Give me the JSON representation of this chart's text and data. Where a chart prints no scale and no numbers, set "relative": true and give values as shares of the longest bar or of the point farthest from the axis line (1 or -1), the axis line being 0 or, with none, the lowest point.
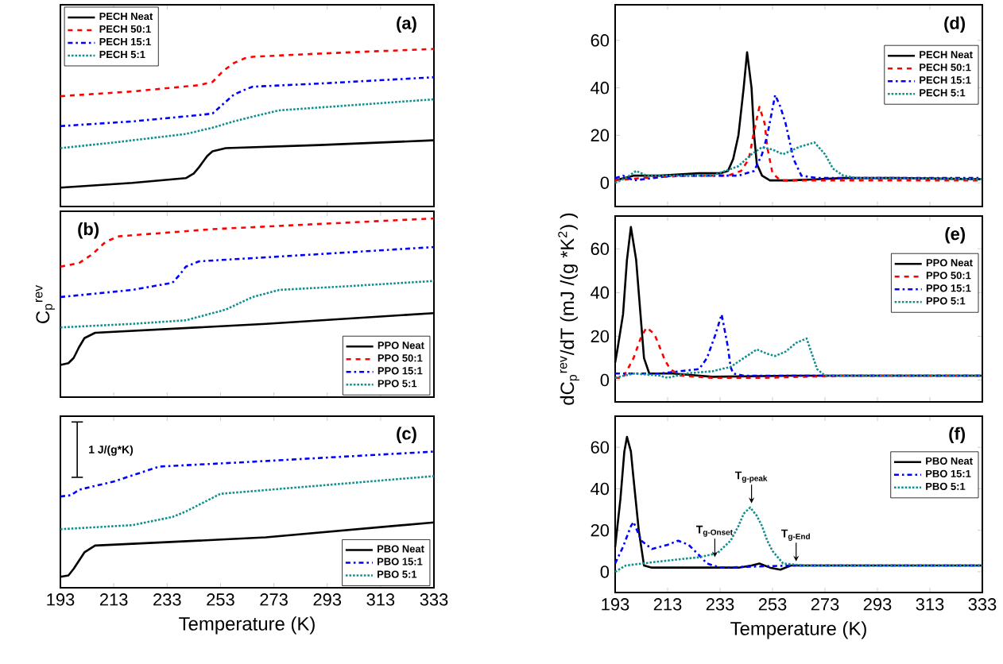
{
  "chart_data": [
    {
      "type": "line",
      "title": "(a)",
      "relative": true,
      "xlim": [
        193,
        333
      ],
      "xticks": [
        193,
        213,
        233,
        253,
        273,
        293,
        313,
        333
      ],
      "tick_labels": false,
      "legend": "top left",
      "series": [
        {
          "name": "PECH Neat",
          "color": "#000000",
          "line_style": "solid",
          "x": [
            193,
            220,
            240,
            243,
            245,
            248,
            250,
            255,
            290,
            333
          ],
          "values": [
            0.12,
            0.15,
            0.18,
            0.21,
            0.25,
            0.32,
            0.35,
            0.37,
            0.39,
            0.42
          ]
        },
        {
          "name": "PECH 50:1",
          "color": "#ff0000",
          "line_style": "dashed",
          "x": [
            193,
            220,
            245,
            250,
            254,
            258,
            262,
            265,
            290,
            333
          ],
          "values": [
            0.7,
            0.73,
            0.77,
            0.79,
            0.86,
            0.91,
            0.94,
            0.95,
            0.97,
            1.0
          ]
        },
        {
          "name": "PECH 15:1",
          "color": "#0000ff",
          "line_style": "dashdot",
          "x": [
            193,
            220,
            245,
            250,
            254,
            258,
            262,
            265,
            290,
            333
          ],
          "values": [
            0.51,
            0.54,
            0.58,
            0.59,
            0.65,
            0.71,
            0.74,
            0.76,
            0.78,
            0.82
          ]
        },
        {
          "name": "PECH 5:1",
          "color": "#108f8f",
          "line_style": "dotted",
          "x": [
            193,
            215,
            240,
            250,
            258,
            265,
            275,
            300,
            333
          ],
          "values": [
            0.37,
            0.41,
            0.46,
            0.5,
            0.54,
            0.57,
            0.61,
            0.64,
            0.68
          ]
        }
      ]
    },
    {
      "type": "line",
      "title": "(b)",
      "ylabel": "C$_{p}$$^{rev}$",
      "relative": true,
      "xlim": [
        193,
        333
      ],
      "xticks": [
        193,
        213,
        233,
        253,
        273,
        293,
        313,
        333
      ],
      "tick_labels": false,
      "legend": "bottom right",
      "series": [
        {
          "name": "PPO Neat",
          "color": "#000000",
          "line_style": "solid",
          "x": [
            193,
            196,
            198,
            200,
            202,
            206,
            270,
            333
          ],
          "values": [
            0.18,
            0.19,
            0.22,
            0.28,
            0.33,
            0.36,
            0.41,
            0.47
          ]
        },
        {
          "name": "PPO 50:1",
          "color": "#ff0000",
          "line_style": "dashed",
          "x": [
            193,
            200,
            205,
            210,
            215,
            250,
            333
          ],
          "values": [
            0.73,
            0.75,
            0.8,
            0.87,
            0.9,
            0.94,
            1.0
          ]
        },
        {
          "name": "PPO 15:1",
          "color": "#0000ff",
          "line_style": "dashdot",
          "x": [
            193,
            220,
            235,
            238,
            240,
            245,
            290,
            333
          ],
          "values": [
            0.56,
            0.6,
            0.64,
            0.69,
            0.73,
            0.76,
            0.8,
            0.84
          ]
        },
        {
          "name": "PPO 5:1",
          "color": "#108f8f",
          "line_style": "dotted",
          "x": [
            193,
            220,
            240,
            255,
            265,
            275,
            300,
            333
          ],
          "values": [
            0.39,
            0.41,
            0.43,
            0.49,
            0.56,
            0.6,
            0.62,
            0.65
          ]
        }
      ]
    },
    {
      "type": "line",
      "title": "(c)",
      "xlabel": "Temperature (K)",
      "relative": true,
      "xlim": [
        193,
        333
      ],
      "xticks": [
        193,
        213,
        233,
        253,
        273,
        293,
        313,
        333
      ],
      "tick_labels": "x",
      "legend": "bottom right",
      "annotations": [
        "1 J/(g*K)"
      ],
      "series": [
        {
          "name": "PBO Neat",
          "color": "#000000",
          "line_style": "solid",
          "x": [
            193,
            196,
            198,
            200,
            202,
            206,
            270,
            333
          ],
          "values": [
            0.08,
            0.09,
            0.14,
            0.2,
            0.26,
            0.31,
            0.37,
            0.48
          ]
        },
        {
          "name": "PBO 15:1",
          "color": "#0000ff",
          "line_style": "dashdot",
          "x": [
            193,
            197,
            200,
            213,
            230,
            260,
            333
          ],
          "values": [
            0.67,
            0.68,
            0.72,
            0.78,
            0.89,
            0.92,
            1.0
          ]
        },
        {
          "name": "PBO 5:1",
          "color": "#108f8f",
          "line_style": "dotted",
          "x": [
            193,
            220,
            235,
            240,
            245,
            250,
            253,
            290,
            333
          ],
          "values": [
            0.43,
            0.46,
            0.52,
            0.56,
            0.61,
            0.66,
            0.69,
            0.75,
            0.82
          ]
        }
      ]
    },
    {
      "type": "line",
      "title": "(d)",
      "xlim": [
        193,
        333
      ],
      "xticks": [
        193,
        213,
        233,
        253,
        273,
        293,
        313,
        333
      ],
      "ylim": [
        -10,
        75
      ],
      "yticks": [
        0,
        20,
        40,
        60
      ],
      "tick_labels": "y",
      "legend": "top right",
      "series": [
        {
          "name": "PECH Neat",
          "color": "#000000",
          "line_style": "solid",
          "x": [
            193,
            200,
            210,
            225,
            233,
            236,
            238,
            240,
            242,
            243.3,
            245,
            246,
            247,
            249,
            252,
            260,
            280,
            300,
            333
          ],
          "values": [
            1,
            3,
            3,
            4,
            4,
            5,
            10,
            20,
            40,
            55,
            40,
            20,
            8,
            3,
            1,
            1,
            2,
            2,
            1.5
          ]
        },
        {
          "name": "PECH 50:1",
          "color": "#ff0000",
          "line_style": "dashed",
          "x": [
            193,
            203,
            220,
            236,
            241,
            244,
            246,
            248,
            250,
            251,
            253,
            256,
            270,
            333
          ],
          "values": [
            1,
            2,
            3,
            3,
            5,
            10,
            22,
            32,
            25,
            15,
            4,
            1,
            1,
            1
          ]
        },
        {
          "name": "PECH 15:1",
          "color": "#0000ff",
          "line_style": "dashdot",
          "x": [
            193,
            196,
            200,
            215,
            230,
            240,
            246,
            249,
            251,
            254,
            256,
            258,
            261,
            264,
            270,
            333
          ],
          "values": [
            2,
            3,
            1,
            3,
            3,
            3,
            5,
            12,
            20,
            37,
            32,
            25,
            10,
            3,
            2,
            2
          ]
        },
        {
          "name": "PECH 5:1",
          "color": "#108f8f",
          "line_style": "dotted",
          "x": [
            193,
            197,
            201,
            205,
            215,
            230,
            240,
            245,
            249,
            253,
            257,
            263,
            269,
            273,
            276,
            280,
            285,
            333
          ],
          "values": [
            0,
            2,
            5,
            3,
            3,
            3,
            7,
            12,
            15,
            14,
            12,
            15,
            17,
            12,
            6,
            3,
            2,
            1.5
          ]
        }
      ]
    },
    {
      "type": "line",
      "title": "(e)",
      "ylabel": "dC$_{p}$$^{rev}$/dT (mJ /(g *K$^{2}$) )",
      "xlim": [
        193,
        333
      ],
      "xticks": [
        193,
        213,
        233,
        253,
        273,
        293,
        313,
        333
      ],
      "ylim": [
        -10,
        75
      ],
      "yticks": [
        0,
        20,
        40,
        60
      ],
      "tick_labels": "y",
      "legend": "top right",
      "series": [
        {
          "name": "PPO Neat",
          "color": "#000000",
          "line_style": "solid",
          "x": [
            193,
            194,
            196,
            197.5,
            199,
            201,
            203,
            204,
            206,
            215,
            230,
            260,
            290,
            333
          ],
          "values": [
            8,
            15,
            30,
            55,
            70,
            55,
            25,
            10,
            3,
            3,
            1.5,
            2,
            2,
            2
          ]
        },
        {
          "name": "PPO 50:1",
          "color": "#ff0000",
          "line_style": "dashed",
          "x": [
            193,
            196,
            200,
            203,
            205,
            208,
            210,
            212,
            214,
            218,
            230,
            250,
            280,
            333
          ],
          "values": [
            1,
            1,
            10,
            20,
            24,
            21,
            15,
            9,
            5,
            2,
            1,
            1,
            2,
            2
          ]
        },
        {
          "name": "PPO 15:1",
          "color": "#0000ff",
          "line_style": "dashdot",
          "x": [
            193,
            210,
            225,
            228,
            231,
            233.6,
            236,
            237,
            238,
            242,
            260,
            333
          ],
          "values": [
            3,
            3,
            5,
            10,
            20,
            30,
            15,
            6,
            3,
            2,
            2,
            2
          ]
        },
        {
          "name": "PPO 5:1",
          "color": "#108f8f",
          "line_style": "dotted",
          "x": [
            193,
            200,
            210,
            213,
            220,
            230,
            237,
            242,
            247,
            251,
            254,
            258,
            262,
            266,
            268,
            270,
            273,
            280,
            333
          ],
          "values": [
            1,
            3,
            2,
            1,
            3,
            4,
            6,
            10,
            14,
            12,
            11,
            13,
            17,
            19,
            12,
            5,
            2,
            2,
            2
          ]
        }
      ]
    },
    {
      "type": "line",
      "title": "(f)",
      "xlabel": "Temperature (K)",
      "xlim": [
        193,
        333
      ],
      "xticks": [
        193,
        213,
        233,
        253,
        273,
        293,
        313,
        333
      ],
      "ylim": [
        -10,
        75
      ],
      "yticks": [
        0,
        20,
        40,
        60
      ],
      "legend": "top right",
      "annotations": [
        {
          "text": "T$_{g-Onset}$",
          "x": 231,
          "y": 6
        },
        {
          "text": "T$_{g-peak}$",
          "x": 245,
          "y": 32
        },
        {
          "text": "T$_{g-End}$",
          "x": 262,
          "y": 4
        }
      ],
      "series": [
        {
          "name": "PBO Neat",
          "color": "#000000",
          "line_style": "solid",
          "x": [
            193,
            195,
            196.5,
            197.5,
            199,
            200,
            202,
            204,
            207,
            220,
            240,
            245,
            248,
            252,
            256,
            260,
            280,
            333
          ],
          "values": [
            12,
            35,
            58,
            65,
            58,
            45,
            20,
            3,
            2,
            2,
            2,
            3,
            4,
            2,
            1,
            3,
            3,
            3
          ]
        },
        {
          "name": "PBO 15:1",
          "color": "#0000ff",
          "line_style": "dashdot",
          "x": [
            193,
            196,
            199,
            200,
            203,
            207,
            213,
            217,
            221,
            225,
            228,
            233,
            260,
            333
          ],
          "values": [
            4,
            12,
            22,
            24,
            15,
            11,
            13,
            15,
            13,
            8,
            4,
            2,
            3,
            3
          ]
        },
        {
          "name": "PBO 5:1",
          "color": "#108f8f",
          "line_style": "dotted",
          "x": [
            193,
            197,
            210,
            225,
            232,
            237,
            240,
            242,
            244.5,
            247,
            249,
            251,
            253,
            257,
            265,
            333
          ],
          "values": [
            0,
            3,
            5,
            7,
            9,
            15,
            22,
            28,
            31,
            27,
            22,
            15,
            10,
            4,
            3,
            3
          ]
        }
      ]
    }
  ]
}
